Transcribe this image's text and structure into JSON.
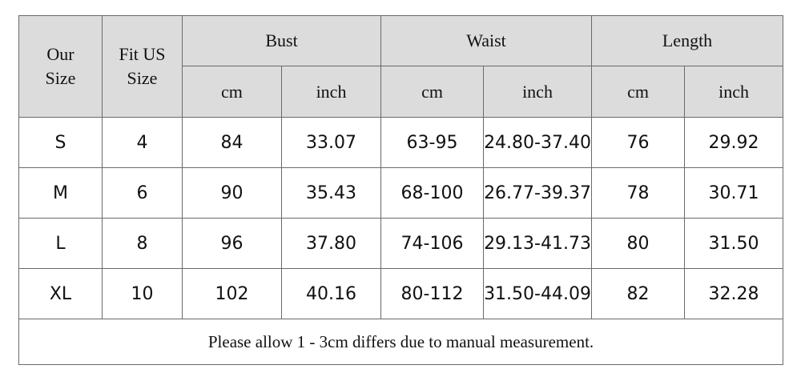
{
  "header": {
    "size": "Our Size",
    "fit": "Fit US Size",
    "groups": [
      "Bust",
      "Waist",
      "Length"
    ],
    "units": [
      "cm",
      "inch",
      "cm",
      "inch",
      "cm",
      "inch"
    ]
  },
  "table": {
    "rows": [
      [
        "S",
        "4",
        "84",
        "33.07",
        "63-95",
        "24.80-37.40",
        "76",
        "29.92"
      ],
      [
        "M",
        "6",
        "90",
        "35.43",
        "68-100",
        "26.77-39.37",
        "78",
        "30.71"
      ],
      [
        "L",
        "8",
        "96",
        "37.80",
        "74-106",
        "29.13-41.73",
        "80",
        "31.50"
      ],
      [
        "XL",
        "10",
        "102",
        "40.16",
        "80-112",
        "31.50-44.09",
        "82",
        "32.28"
      ]
    ]
  },
  "note": "Please allow 1 - 3cm differs due to manual measurement."
}
